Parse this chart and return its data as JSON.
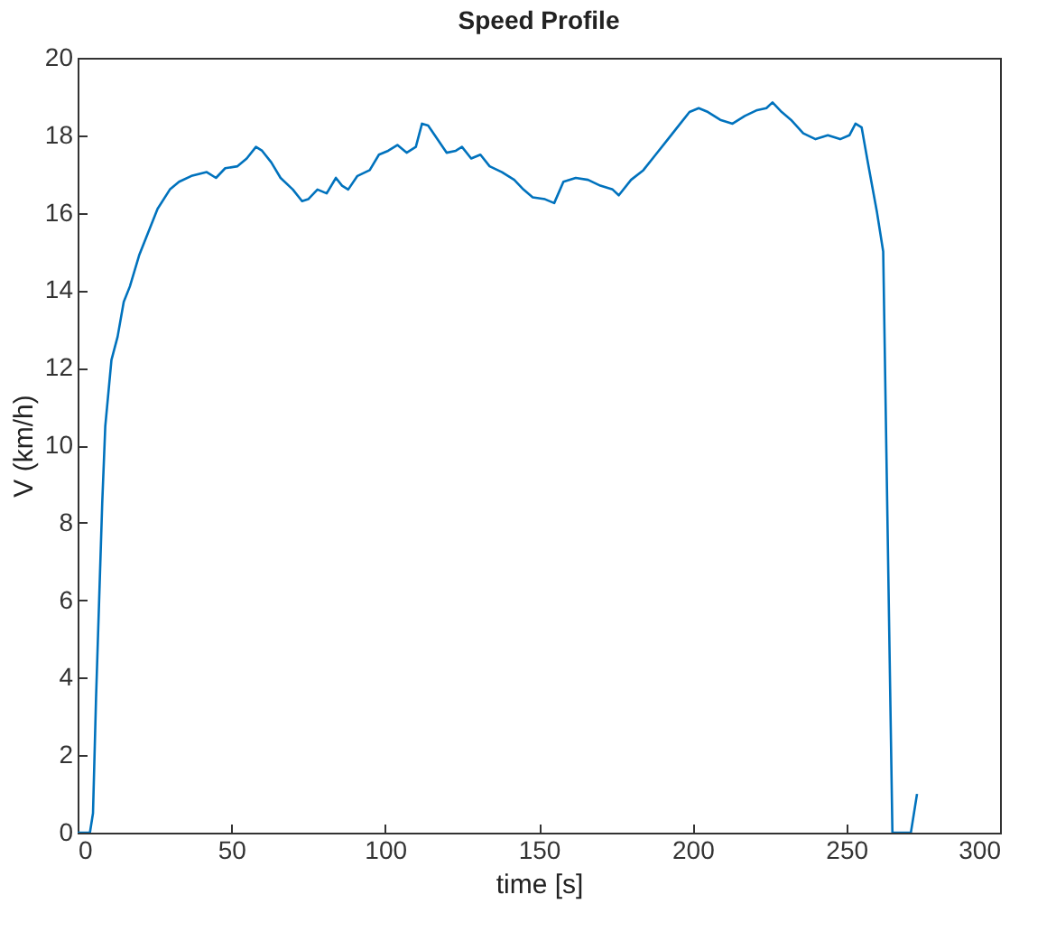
{
  "chart_data": {
    "type": "line",
    "title": "Speed Profile",
    "xlabel": "time [s]",
    "ylabel": "V (km/h)",
    "xlim": [
      0,
      300
    ],
    "xticks": [
      0,
      50,
      100,
      150,
      200,
      250,
      300
    ],
    "ylim": [
      0,
      20
    ],
    "yticks": [
      0,
      2,
      4,
      6,
      8,
      10,
      12,
      14,
      16,
      18,
      20
    ],
    "grid": false,
    "x": [
      0,
      4,
      5,
      6,
      7,
      8,
      9,
      11,
      13,
      15,
      17,
      20,
      23,
      26,
      30,
      33,
      37,
      42,
      45,
      48,
      52,
      55,
      58,
      60,
      63,
      66,
      70,
      73,
      75,
      78,
      81,
      84,
      86,
      88,
      91,
      95,
      98,
      101,
      104,
      107,
      110,
      112,
      114,
      117,
      120,
      123,
      125,
      128,
      131,
      134,
      138,
      142,
      145,
      148,
      152,
      155,
      158,
      162,
      166,
      170,
      174,
      176,
      180,
      184,
      188,
      192,
      196,
      199,
      202,
      205,
      209,
      213,
      217,
      221,
      224,
      226,
      229,
      232,
      236,
      240,
      244,
      248,
      251,
      253,
      255,
      257,
      260,
      262,
      265,
      267,
      271,
      273
    ],
    "series": [
      {
        "color": "#0072bd",
        "values": [
          0,
          0,
          0.5,
          3.5,
          6,
          8.5,
          10.5,
          12.2,
          12.8,
          13.7,
          14.1,
          14.9,
          15.5,
          16.1,
          16.6,
          16.8,
          16.95,
          17.05,
          16.9,
          17.15,
          17.2,
          17.4,
          17.7,
          17.6,
          17.3,
          16.9,
          16.6,
          16.3,
          16.35,
          16.6,
          16.5,
          16.9,
          16.7,
          16.6,
          16.95,
          17.1,
          17.5,
          17.6,
          17.75,
          17.55,
          17.7,
          18.3,
          18.25,
          17.9,
          17.55,
          17.6,
          17.7,
          17.4,
          17.5,
          17.2,
          17.05,
          16.85,
          16.6,
          16.4,
          16.35,
          16.25,
          16.8,
          16.9,
          16.85,
          16.7,
          16.6,
          16.45,
          16.85,
          17.1,
          17.5,
          17.9,
          18.3,
          18.6,
          18.7,
          18.6,
          18.4,
          18.3,
          18.5,
          18.65,
          18.7,
          18.85,
          18.6,
          18.4,
          18.05,
          17.9,
          18.0,
          17.9,
          18.0,
          18.3,
          18.2,
          17.3,
          16.0,
          15.0,
          0,
          0,
          0,
          1.0
        ]
      }
    ]
  }
}
